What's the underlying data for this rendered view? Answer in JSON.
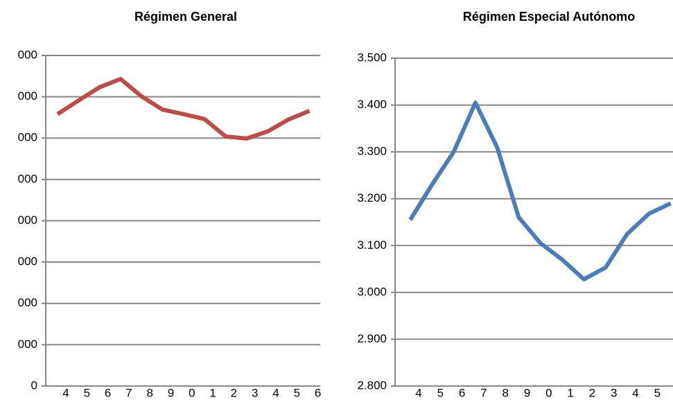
{
  "chart_data": [
    {
      "type": "line",
      "title": "Régimen General",
      "categories": [
        "4",
        "5",
        "6",
        "7",
        "8",
        "9",
        "0",
        "1",
        "2",
        "3",
        "4",
        "5",
        "6"
      ],
      "series": [
        {
          "color": "#be4b48",
          "values": [
            6.58,
            6.91,
            7.23,
            7.43,
            7.01,
            6.69,
            6.58,
            6.46,
            6.04,
            5.99,
            6.16,
            6.45,
            6.66
          ]
        }
      ],
      "ylim": [
        0,
        8
      ],
      "yticks": [
        0,
        {
          "value": 1,
          "label": "000"
        },
        {
          "value": 2,
          "label": "000"
        },
        {
          "value": 3,
          "label": "000"
        },
        {
          "value": 4,
          "label": "000"
        },
        {
          "value": 5,
          "label": "000"
        },
        {
          "value": 6,
          "label": "000"
        },
        {
          "value": 7,
          "label": "000"
        },
        {
          "value": 8,
          "label": "000"
        }
      ],
      "grid": true
    },
    {
      "type": "line",
      "title": "Régimen Especial  Autónomo",
      "categories": [
        "4",
        "5",
        "6",
        "7",
        "8",
        "9",
        "0",
        "1",
        "2",
        "3",
        "4",
        "5",
        null
      ],
      "series": [
        {
          "color": "#4a7ebb",
          "values": [
            3.155,
            3.23,
            3.3,
            3.405,
            3.31,
            3.16,
            3.105,
            3.07,
            3.028,
            3.053,
            3.125,
            3.168,
            3.19
          ]
        }
      ],
      "ylim": [
        2.8,
        3.5
      ],
      "yticks": [
        {
          "value": 2.8,
          "label": "2.800"
        },
        {
          "value": 2.9,
          "label": "2.900"
        },
        {
          "value": 3.0,
          "label": "3.000"
        },
        {
          "value": 3.1,
          "label": "3.100"
        },
        {
          "value": 3.2,
          "label": "3.200"
        },
        {
          "value": 3.3,
          "label": "3.300"
        },
        {
          "value": 3.4,
          "label": "3.400"
        },
        {
          "value": 3.5,
          "label": "3.500"
        }
      ],
      "grid": true
    }
  ]
}
